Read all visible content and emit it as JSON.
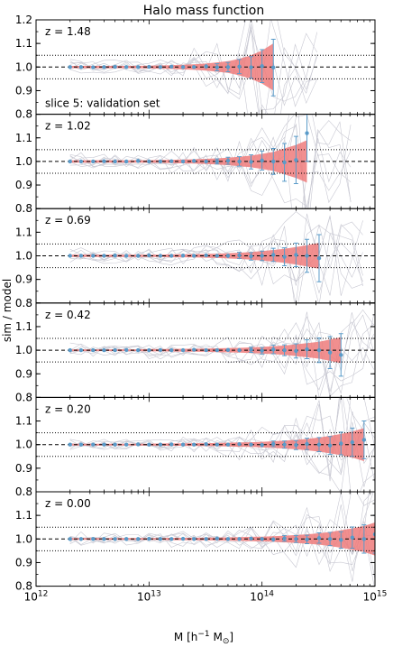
{
  "chart_data": {
    "type": "line",
    "title": "Halo mass function",
    "ylabel": "sim / model",
    "xlabel": "M [h⁻¹ M⊙]",
    "x_scale": "log",
    "x_range": [
      1000000000000.0,
      1000000000000000.0
    ],
    "x_ticks": [
      {
        "value": 1000000000000.0,
        "base": "10",
        "exp": "12"
      },
      {
        "value": 10000000000000.0,
        "base": "10",
        "exp": "13"
      },
      {
        "value": 100000000000000.0,
        "base": "10",
        "exp": "14"
      },
      {
        "value": 1000000000000000.0,
        "base": "10",
        "exp": "15"
      }
    ],
    "y_range": [
      0.8,
      1.2
    ],
    "y_ticks": [
      "0.8",
      "0.9",
      "1.0",
      "1.1",
      "1.2"
    ],
    "reference_lines": {
      "dashed": 1.0,
      "dotted": [
        0.95,
        1.05
      ]
    },
    "annotation": "slice 5: validation set",
    "band_color": "#ee7b7b",
    "point_color": "#5a9bc9",
    "faint_color": "#c8c8d2",
    "panels": [
      {
        "z_label": "z = 1.48",
        "points": [
          [
            2000000000000.0,
            1.0
          ],
          [
            2500000000000.0,
            1.0
          ],
          [
            3200000000000.0,
            0.999
          ],
          [
            4000000000000.0,
            1.0
          ],
          [
            5000000000000.0,
            1.001
          ],
          [
            6300000000000.0,
            1.0
          ],
          [
            8000000000000.0,
            1.0
          ],
          [
            10000000000000.0,
            1.001
          ],
          [
            12600000000000.0,
            1.0
          ],
          [
            15800000000000.0,
            1.002
          ],
          [
            20000000000000.0,
            1.0
          ],
          [
            25000000000000.0,
            1.0
          ],
          [
            32000000000000.0,
            1.003
          ],
          [
            40000000000000.0,
            0.999
          ],
          [
            50000000000000.0,
            1.0
          ],
          [
            63000000000000.0,
            1.002
          ],
          [
            80000000000000.0,
            0.999
          ],
          [
            100000000000000.0,
            1.004
          ],
          [
            126000000000000.0,
            0.998
          ]
        ],
        "errors": [
          0.002,
          0.002,
          0.002,
          0.002,
          0.002,
          0.003,
          0.003,
          0.003,
          0.004,
          0.005,
          0.006,
          0.008,
          0.01,
          0.015,
          0.02,
          0.03,
          0.045,
          0.07,
          0.12
        ],
        "band": [
          0.005,
          0.005,
          0.005,
          0.005,
          0.005,
          0.005,
          0.005,
          0.006,
          0.007,
          0.008,
          0.01,
          0.012,
          0.015,
          0.02,
          0.025,
          0.035,
          0.05,
          0.07,
          0.1
        ],
        "annotate": true
      },
      {
        "z_label": "z = 1.02",
        "points": [
          [
            2000000000000.0,
            1.0
          ],
          [
            2500000000000.0,
            1.0
          ],
          [
            3200000000000.0,
            1.0
          ],
          [
            4000000000000.0,
            1.001
          ],
          [
            5000000000000.0,
            1.0
          ],
          [
            6300000000000.0,
            1.0
          ],
          [
            8000000000000.0,
            1.002
          ],
          [
            10000000000000.0,
            1.0
          ],
          [
            12600000000000.0,
            1.0
          ],
          [
            15800000000000.0,
            1.001
          ],
          [
            20000000000000.0,
            1.0
          ],
          [
            25000000000000.0,
            1.002
          ],
          [
            32000000000000.0,
            1.0
          ],
          [
            40000000000000.0,
            1.0
          ],
          [
            50000000000000.0,
            1.003
          ],
          [
            63000000000000.0,
            1.0
          ],
          [
            80000000000000.0,
            0.998
          ],
          [
            100000000000000.0,
            1.004
          ],
          [
            126000000000000.0,
            1.0
          ],
          [
            158000000000000.0,
            0.996
          ],
          [
            200000000000000.0,
            1.006
          ],
          [
            250000000000000.0,
            1.12
          ]
        ],
        "errors": [
          0.002,
          0.002,
          0.002,
          0.002,
          0.002,
          0.003,
          0.003,
          0.003,
          0.004,
          0.005,
          0.006,
          0.007,
          0.009,
          0.011,
          0.015,
          0.02,
          0.03,
          0.04,
          0.055,
          0.08,
          0.1,
          0.12
        ],
        "band": [
          0.005,
          0.005,
          0.005,
          0.005,
          0.005,
          0.005,
          0.005,
          0.005,
          0.006,
          0.007,
          0.008,
          0.009,
          0.011,
          0.013,
          0.016,
          0.02,
          0.025,
          0.032,
          0.04,
          0.055,
          0.07,
          0.09
        ]
      },
      {
        "z_label": "z = 0.69",
        "points": [
          [
            2000000000000.0,
            1.0
          ],
          [
            2500000000000.0,
            1.0
          ],
          [
            3200000000000.0,
            1.0
          ],
          [
            4000000000000.0,
            1.0
          ],
          [
            5000000000000.0,
            1.001
          ],
          [
            6300000000000.0,
            1.0
          ],
          [
            8000000000000.0,
            1.0
          ],
          [
            10000000000000.0,
            1.002
          ],
          [
            12600000000000.0,
            1.0
          ],
          [
            15800000000000.0,
            1.0
          ],
          [
            20000000000000.0,
            1.001
          ],
          [
            25000000000000.0,
            1.0
          ],
          [
            32000000000000.0,
            1.002
          ],
          [
            40000000000000.0,
            1.0
          ],
          [
            50000000000000.0,
            1.0
          ],
          [
            63000000000000.0,
            1.002
          ],
          [
            80000000000000.0,
            0.998
          ],
          [
            100000000000000.0,
            1.0
          ],
          [
            126000000000000.0,
            1.004
          ],
          [
            158000000000000.0,
            0.996
          ],
          [
            200000000000000.0,
            1.004
          ],
          [
            250000000000000.0,
            1.0
          ],
          [
            320000000000000.0,
            0.99
          ]
        ],
        "errors": [
          0.002,
          0.002,
          0.002,
          0.002,
          0.002,
          0.002,
          0.003,
          0.003,
          0.003,
          0.004,
          0.005,
          0.005,
          0.006,
          0.008,
          0.01,
          0.013,
          0.016,
          0.02,
          0.028,
          0.038,
          0.05,
          0.07,
          0.1
        ],
        "band": [
          0.005,
          0.005,
          0.005,
          0.005,
          0.005,
          0.005,
          0.005,
          0.005,
          0.005,
          0.006,
          0.006,
          0.007,
          0.008,
          0.009,
          0.011,
          0.013,
          0.016,
          0.02,
          0.025,
          0.03,
          0.037,
          0.045,
          0.055
        ]
      },
      {
        "z_label": "z = 0.42",
        "points": [
          [
            2000000000000.0,
            1.0
          ],
          [
            2500000000000.0,
            1.0
          ],
          [
            3200000000000.0,
            1.0
          ],
          [
            4000000000000.0,
            1.0
          ],
          [
            5000000000000.0,
            1.0
          ],
          [
            6300000000000.0,
            1.001
          ],
          [
            8000000000000.0,
            1.0
          ],
          [
            10000000000000.0,
            1.0
          ],
          [
            12600000000000.0,
            1.001
          ],
          [
            15800000000000.0,
            1.0
          ],
          [
            20000000000000.0,
            1.0
          ],
          [
            25000000000000.0,
            1.002
          ],
          [
            32000000000000.0,
            1.0
          ],
          [
            40000000000000.0,
            1.0
          ],
          [
            50000000000000.0,
            1.001
          ],
          [
            63000000000000.0,
            1.0
          ],
          [
            80000000000000.0,
            1.002
          ],
          [
            100000000000000.0,
            0.998
          ],
          [
            126000000000000.0,
            1.003
          ],
          [
            158000000000000.0,
            1.0
          ],
          [
            200000000000000.0,
            0.997
          ],
          [
            250000000000000.0,
            1.004
          ],
          [
            320000000000000.0,
            1.0
          ],
          [
            400000000000000.0,
            0.99
          ],
          [
            500000000000000.0,
            0.98
          ]
        ],
        "errors": [
          0.002,
          0.002,
          0.002,
          0.002,
          0.002,
          0.002,
          0.002,
          0.003,
          0.003,
          0.003,
          0.004,
          0.004,
          0.005,
          0.006,
          0.007,
          0.009,
          0.011,
          0.014,
          0.018,
          0.023,
          0.03,
          0.04,
          0.052,
          0.068,
          0.09
        ],
        "band": [
          0.004,
          0.004,
          0.004,
          0.004,
          0.004,
          0.004,
          0.004,
          0.005,
          0.005,
          0.005,
          0.006,
          0.006,
          0.007,
          0.008,
          0.009,
          0.01,
          0.012,
          0.014,
          0.017,
          0.02,
          0.025,
          0.03,
          0.036,
          0.045,
          0.055
        ]
      },
      {
        "z_label": "z = 0.20",
        "points": [
          [
            2000000000000.0,
            1.0
          ],
          [
            2500000000000.0,
            1.0
          ],
          [
            3200000000000.0,
            1.0
          ],
          [
            4000000000000.0,
            1.0
          ],
          [
            5000000000000.0,
            1.0
          ],
          [
            6300000000000.0,
            1.0
          ],
          [
            8000000000000.0,
            1.001
          ],
          [
            10000000000000.0,
            1.0
          ],
          [
            12600000000000.0,
            1.0
          ],
          [
            15800000000000.0,
            1.001
          ],
          [
            20000000000000.0,
            1.0
          ],
          [
            25000000000000.0,
            1.0
          ],
          [
            32000000000000.0,
            1.002
          ],
          [
            40000000000000.0,
            1.0
          ],
          [
            50000000000000.0,
            1.0
          ],
          [
            63000000000000.0,
            1.002
          ],
          [
            80000000000000.0,
            1.0
          ],
          [
            100000000000000.0,
            0.998
          ],
          [
            126000000000000.0,
            1.003
          ],
          [
            158000000000000.0,
            1.0
          ],
          [
            200000000000000.0,
            0.998
          ],
          [
            250000000000000.0,
            1.003
          ],
          [
            320000000000000.0,
            1.0
          ],
          [
            400000000000000.0,
            0.996
          ],
          [
            500000000000000.0,
            1.005
          ],
          [
            630000000000000.0,
            1.01
          ],
          [
            800000000000000.0,
            1.02
          ]
        ],
        "errors": [
          0.002,
          0.002,
          0.002,
          0.002,
          0.002,
          0.002,
          0.002,
          0.002,
          0.003,
          0.003,
          0.003,
          0.004,
          0.004,
          0.005,
          0.006,
          0.007,
          0.008,
          0.01,
          0.012,
          0.015,
          0.019,
          0.024,
          0.03,
          0.038,
          0.048,
          0.06,
          0.08
        ],
        "band": [
          0.004,
          0.004,
          0.004,
          0.004,
          0.004,
          0.004,
          0.004,
          0.004,
          0.005,
          0.005,
          0.005,
          0.006,
          0.006,
          0.007,
          0.008,
          0.009,
          0.01,
          0.012,
          0.014,
          0.017,
          0.02,
          0.024,
          0.03,
          0.037,
          0.045,
          0.055,
          0.07
        ]
      },
      {
        "z_label": "z = 0.00",
        "points": [
          [
            2000000000000.0,
            1.0
          ],
          [
            2500000000000.0,
            1.0
          ],
          [
            3200000000000.0,
            1.0
          ],
          [
            4000000000000.0,
            1.0
          ],
          [
            5000000000000.0,
            1.0
          ],
          [
            6300000000000.0,
            1.0
          ],
          [
            8000000000000.0,
            1.0
          ],
          [
            10000000000000.0,
            1.001
          ],
          [
            12600000000000.0,
            1.0
          ],
          [
            15800000000000.0,
            1.0
          ],
          [
            20000000000000.0,
            1.001
          ],
          [
            25000000000000.0,
            1.0
          ],
          [
            32000000000000.0,
            1.0
          ],
          [
            40000000000000.0,
            1.002
          ],
          [
            50000000000000.0,
            1.0
          ],
          [
            63000000000000.0,
            1.0
          ],
          [
            80000000000000.0,
            1.002
          ],
          [
            100000000000000.0,
            1.0
          ],
          [
            126000000000000.0,
            0.998
          ],
          [
            158000000000000.0,
            1.003
          ],
          [
            200000000000000.0,
            1.0
          ],
          [
            250000000000000.0,
            0.998
          ],
          [
            320000000000000.0,
            1.004
          ],
          [
            400000000000000.0,
            1.0
          ],
          [
            500000000000000.0,
            0.996
          ],
          [
            630000000000000.0,
            1.006
          ],
          [
            800000000000000.0,
            1.0
          ],
          [
            1000000000000000.0,
            1.02
          ]
        ],
        "errors": [
          0.002,
          0.002,
          0.002,
          0.002,
          0.002,
          0.002,
          0.002,
          0.002,
          0.002,
          0.003,
          0.003,
          0.003,
          0.004,
          0.004,
          0.005,
          0.006,
          0.007,
          0.008,
          0.01,
          0.012,
          0.015,
          0.018,
          0.022,
          0.028,
          0.035,
          0.045,
          0.06,
          0.08
        ],
        "band": [
          0.004,
          0.004,
          0.004,
          0.004,
          0.004,
          0.004,
          0.004,
          0.004,
          0.004,
          0.005,
          0.005,
          0.005,
          0.006,
          0.006,
          0.007,
          0.008,
          0.009,
          0.01,
          0.012,
          0.014,
          0.017,
          0.02,
          0.024,
          0.03,
          0.037,
          0.045,
          0.055,
          0.07
        ]
      }
    ]
  }
}
